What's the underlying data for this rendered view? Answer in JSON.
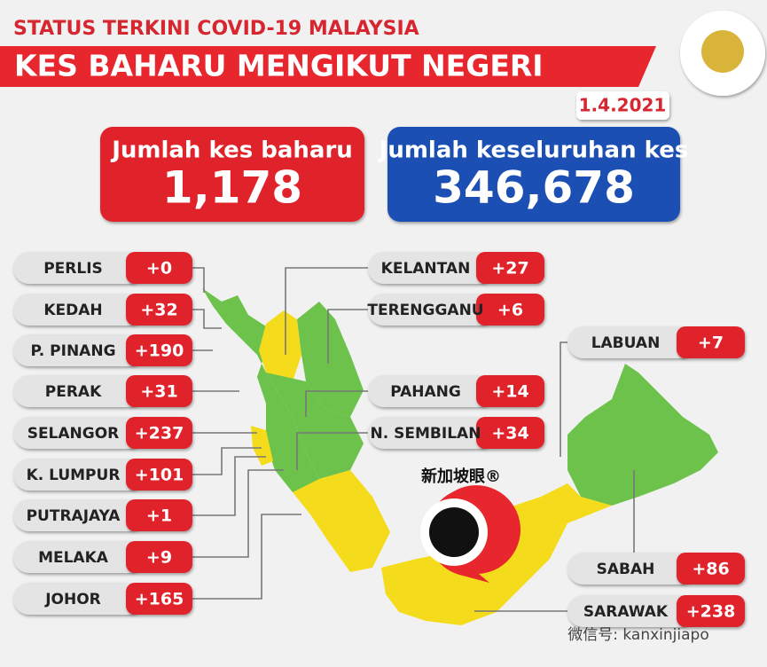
{
  "header": {
    "subtitle": "STATUS TERKINI COVID-19 MALAYSIA",
    "title": "KES BAHARU MENGIKUT NEGERI",
    "date": "1.4.2021"
  },
  "totals": [
    {
      "label": "Jumlah kes baharu",
      "value": "1,178"
    },
    {
      "label": "Jumlah keseluruhan kes",
      "value": "346,678"
    }
  ],
  "states_left": [
    {
      "name": "PERLIS",
      "cases": "+0"
    },
    {
      "name": "KEDAH",
      "cases": "+32"
    },
    {
      "name": "P. PINANG",
      "cases": "+190"
    },
    {
      "name": "PERAK",
      "cases": "+31"
    },
    {
      "name": "SELANGOR",
      "cases": "+237"
    },
    {
      "name": "K. LUMPUR",
      "cases": "+101"
    },
    {
      "name": "PUTRAJAYA",
      "cases": "+1"
    },
    {
      "name": "MELAKA",
      "cases": "+9"
    },
    {
      "name": "JOHOR",
      "cases": "+165"
    }
  ],
  "states_right": [
    {
      "name": "KELANTAN",
      "cases": "+27"
    },
    {
      "name": "TERENGGANU",
      "cases": "+6"
    },
    {
      "name": "PAHANG",
      "cases": "+14"
    },
    {
      "name": "N. SEMBILAN",
      "cases": "+34"
    }
  ],
  "states_borneo": [
    {
      "name": "LABUAN",
      "cases": "+7"
    },
    {
      "name": "SABAH",
      "cases": "+86"
    },
    {
      "name": "SARAWAK",
      "cases": "+238"
    }
  ],
  "watermarks": [
    "新加坡眼®",
    "微信号: kanxinjiapo"
  ]
}
